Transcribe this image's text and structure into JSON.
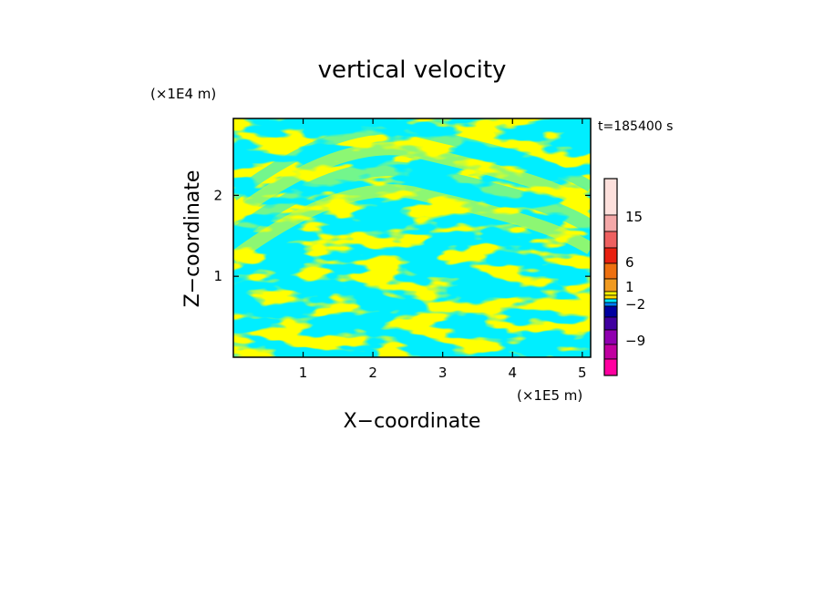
{
  "chart_data": {
    "type": "heatmap",
    "title": "vertical velocity",
    "xlabel": "X−coordinate",
    "ylabel": "Z−coordinate",
    "x_unit": "(×1E5 m)",
    "y_unit": "(×1E4 m)",
    "time_label": "t=185400 s",
    "xlim": [
      0,
      5.12
    ],
    "ylim": [
      0,
      2.95
    ],
    "x_ticks": [
      "1",
      "2",
      "3",
      "4",
      "5"
    ],
    "y_ticks": [
      "1",
      "2"
    ],
    "x_tick_values": [
      1,
      2,
      3,
      4,
      5
    ],
    "y_tick_values": [
      1,
      2
    ],
    "colorbar": {
      "labels": [
        "15",
        "6",
        "1",
        "−2",
        "−9"
      ],
      "label_levels": [
        15,
        6,
        1,
        -2,
        -9
      ],
      "colors_top_to_bottom": [
        "#fde0dc",
        "#f4a8a8",
        "#ee6060",
        "#e82010",
        "#ee7010",
        "#f09a20",
        "#ffff00",
        "#ffe000",
        "#00e8ff",
        "#0080ff",
        "#0000a0",
        "#4000a0",
        "#9000b0",
        "#c000a0",
        "#ff00a0"
      ]
    },
    "field_colors": {
      "positive": "#ffff00",
      "negative": "#00eeff"
    }
  }
}
